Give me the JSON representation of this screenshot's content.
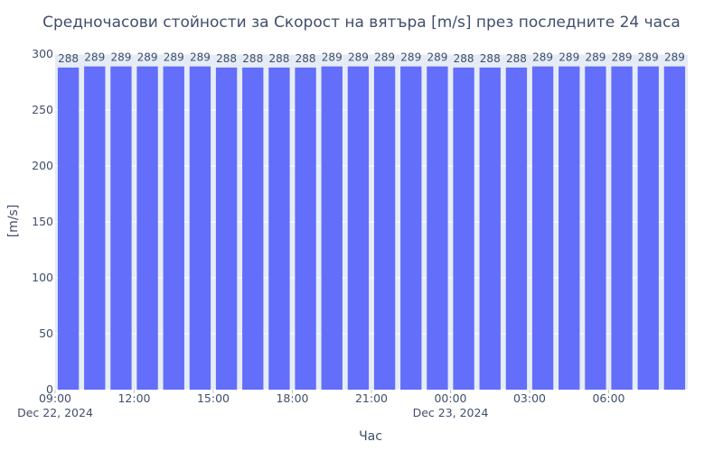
{
  "chart_data": {
    "type": "bar",
    "title": "Средночасови стойности за Скорост на вятъра [m/s] през последните 24 часа",
    "xlabel": "Час",
    "ylabel": "[m/s]",
    "ylim": [
      0,
      300
    ],
    "yticks": [
      0,
      50,
      100,
      150,
      200,
      250,
      300
    ],
    "grid": true,
    "bar_color": "#636efa",
    "plot_bg": "#e5ecf6",
    "categories": [
      "2024-12-22 09:00",
      "2024-12-22 10:00",
      "2024-12-22 11:00",
      "2024-12-22 12:00",
      "2024-12-22 13:00",
      "2024-12-22 14:00",
      "2024-12-22 15:00",
      "2024-12-22 16:00",
      "2024-12-22 17:00",
      "2024-12-22 18:00",
      "2024-12-22 19:00",
      "2024-12-22 20:00",
      "2024-12-22 21:00",
      "2024-12-22 22:00",
      "2024-12-22 23:00",
      "2024-12-23 00:00",
      "2024-12-23 01:00",
      "2024-12-23 02:00",
      "2024-12-23 03:00",
      "2024-12-23 04:00",
      "2024-12-23 05:00",
      "2024-12-23 06:00",
      "2024-12-23 07:00",
      "2024-12-23 08:00"
    ],
    "values": [
      288,
      289,
      289,
      289,
      289,
      289,
      288,
      288,
      288,
      288,
      289,
      289,
      289,
      289,
      289,
      288,
      288,
      288,
      289,
      289,
      289,
      289,
      289,
      289
    ],
    "xticks": [
      {
        "index": 0,
        "label": "09:00",
        "sublabel": "Dec 22, 2024"
      },
      {
        "index": 3,
        "label": "12:00",
        "sublabel": ""
      },
      {
        "index": 6,
        "label": "15:00",
        "sublabel": ""
      },
      {
        "index": 9,
        "label": "18:00",
        "sublabel": ""
      },
      {
        "index": 12,
        "label": "21:00",
        "sublabel": ""
      },
      {
        "index": 15,
        "label": "00:00",
        "sublabel": "Dec 23, 2024"
      },
      {
        "index": 18,
        "label": "03:00",
        "sublabel": ""
      },
      {
        "index": 21,
        "label": "06:00",
        "sublabel": ""
      }
    ]
  }
}
